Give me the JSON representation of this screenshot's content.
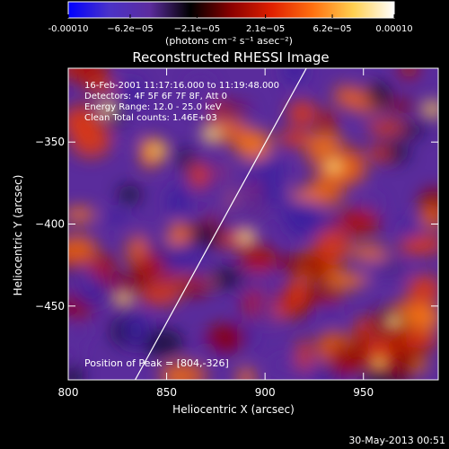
{
  "chart_data": {
    "type": "heatmap",
    "title": "Reconstructed RHESSI Image",
    "xlabel": "Heliocentric X (arcsec)",
    "ylabel": "Heliocentric Y (arcsec)",
    "xlim": [
      800,
      988
    ],
    "ylim": [
      -495,
      -305
    ],
    "x_ticks": [
      800,
      850,
      900,
      950
    ],
    "y_ticks": [
      -350,
      -400,
      -450
    ],
    "colorbar": {
      "range": [
        -0.0001,
        0.0001
      ],
      "ticks": [
        -0.0001,
        -6.2e-05,
        -2.1e-05,
        2.1e-05,
        6.2e-05,
        0.0001
      ],
      "tick_labels": [
        "-0.00010",
        "−6.2e−05",
        "−2.1e−05",
        "2.1e−05",
        "6.2e−05",
        "0.00010"
      ],
      "unit_label": "(photons cm⁻² s⁻¹ asec⁻²)"
    },
    "annotations": [
      "16-Feb-2001 11:17:16.000 to 11:19:48.000",
      "Detectors: 4F 5F 6F 7F 8F, Att 0",
      "Energy Range: 12.0 - 25.0 keV",
      "Clean    Total counts: 1.46E+03"
    ],
    "peak": {
      "label": "Position of Peak = [804,-326]",
      "x": 804,
      "y": -326
    },
    "limb_line": [
      [
        834,
        -495
      ],
      [
        921,
        -305
      ]
    ],
    "colors": [
      "#0000ff",
      "#4a32c8",
      "#5c2c9e",
      "#000000",
      "#8a0000",
      "#e02000",
      "#ff7010",
      "#ffd050",
      "#ffffff"
    ]
  },
  "footer": {
    "date": "30-May-2013 00:51"
  }
}
